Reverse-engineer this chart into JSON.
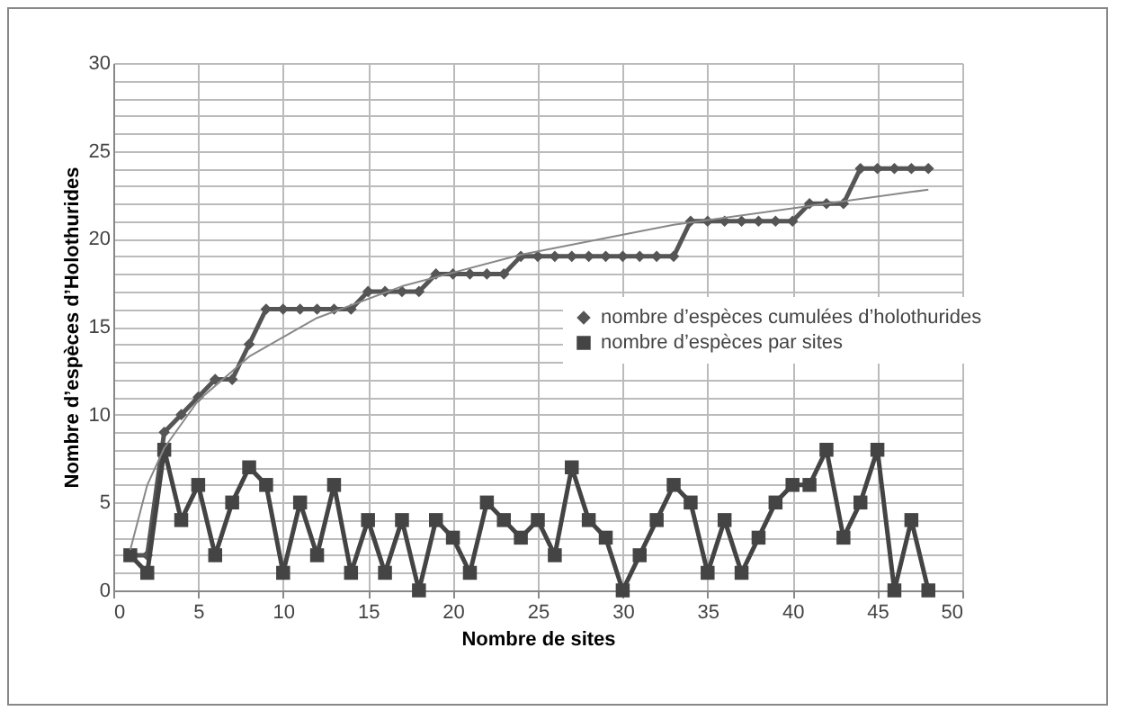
{
  "chart_data": {
    "type": "line",
    "xlabel": "Nombre de sites",
    "ylabel": "Nombre d’espèces d’Holothurides",
    "x": [
      1,
      2,
      3,
      4,
      5,
      6,
      7,
      8,
      9,
      10,
      11,
      12,
      13,
      14,
      15,
      16,
      17,
      18,
      19,
      20,
      21,
      22,
      23,
      24,
      25,
      26,
      27,
      28,
      29,
      30,
      31,
      32,
      33,
      34,
      35,
      36,
      37,
      38,
      39,
      40,
      41,
      42,
      43,
      44,
      45,
      46,
      47,
      48
    ],
    "series": [
      {
        "name": "nombre d’espèces cumulées d’holothurides",
        "color": "#555555",
        "marker": "diamond",
        "values": [
          2,
          2,
          9,
          10,
          11,
          12,
          12,
          14,
          16,
          16,
          16,
          16,
          16,
          16,
          17,
          17,
          17,
          17,
          18,
          18,
          18,
          18,
          18,
          19,
          19,
          19,
          19,
          19,
          19,
          19,
          19,
          19,
          19,
          21,
          21,
          21,
          21,
          21,
          21,
          21,
          22,
          22,
          22,
          24,
          24,
          24,
          24,
          24
        ]
      },
      {
        "name": "nombre d’espèces par sites",
        "color": "#444444",
        "marker": "square",
        "values": [
          2,
          1,
          8,
          4,
          6,
          2,
          5,
          7,
          6,
          1,
          5,
          2,
          6,
          1,
          4,
          1,
          4,
          0,
          4,
          3,
          1,
          5,
          4,
          3,
          4,
          2,
          7,
          4,
          3,
          0,
          2,
          4,
          6,
          5,
          1,
          4,
          1,
          3,
          5,
          6,
          6,
          8,
          3,
          5,
          8,
          0,
          4,
          0
        ]
      },
      {
        "color": "#888888",
        "marker": "none",
        "x": [
          1,
          2,
          3,
          5,
          8,
          12,
          17,
          24,
          33,
          48
        ],
        "values": [
          2.3,
          6.0,
          8.1,
          10.8,
          13.3,
          15.5,
          17.3,
          19.1,
          20.8,
          22.8
        ]
      }
    ],
    "xlim": [
      0,
      50
    ],
    "xticks": [
      0,
      5,
      10,
      15,
      20,
      25,
      30,
      35,
      40,
      45,
      50
    ],
    "ylim": [
      0,
      30
    ],
    "yticks": [
      0,
      {
        "value": 1,
        "label": null
      },
      {
        "value": 2,
        "label": null
      },
      {
        "value": 3,
        "label": null
      },
      {
        "value": 4,
        "label": null
      },
      5,
      {
        "value": 6,
        "label": null
      },
      {
        "value": 7,
        "label": null
      },
      {
        "value": 8,
        "label": null
      },
      {
        "value": 9,
        "label": null
      },
      10,
      {
        "value": 11,
        "label": null
      },
      {
        "value": 12,
        "label": null
      },
      {
        "value": 13,
        "label": null
      },
      {
        "value": 14,
        "label": null
      },
      15,
      {
        "value": 16,
        "label": null
      },
      {
        "value": 17,
        "label": null
      },
      {
        "value": 18,
        "label": null
      },
      {
        "value": 19,
        "label": null
      },
      20,
      {
        "value": 21,
        "label": null
      },
      {
        "value": 22,
        "label": null
      },
      {
        "value": 23,
        "label": null
      },
      {
        "value": 24,
        "label": null
      },
      25,
      {
        "value": 26,
        "label": null
      },
      {
        "value": 27,
        "label": null
      },
      {
        "value": 28,
        "label": null
      },
      {
        "value": 29,
        "label": null
      },
      30
    ],
    "grid": true,
    "legend": "right",
    "line_style": "solid"
  }
}
